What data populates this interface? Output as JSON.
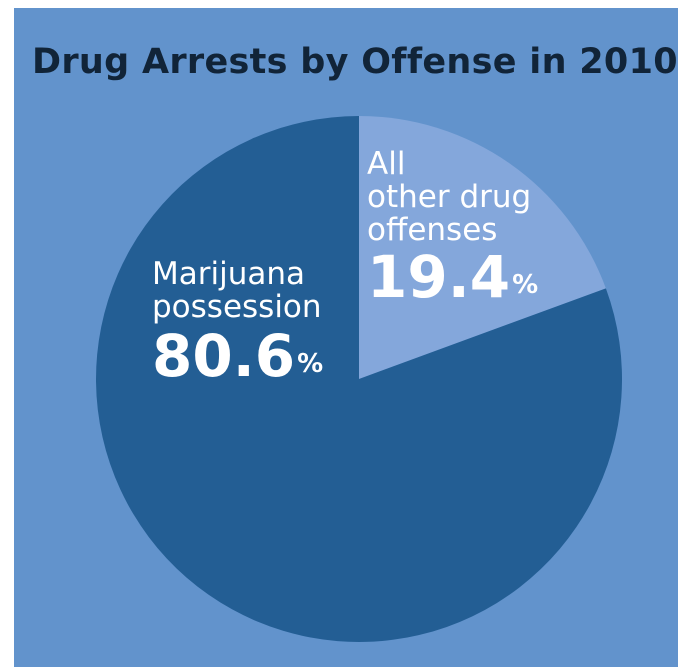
{
  "chart_data": {
    "type": "pie",
    "title": "Drug Arrests by Offense in 2010",
    "slices": [
      {
        "name_lines": [
          "All",
          "other drug",
          "offenses"
        ],
        "value": 19.4,
        "value_text": "19.4",
        "unit": "%",
        "color": "#84a7db"
      },
      {
        "name_lines": [
          "Marijuana",
          "possession"
        ],
        "value": 80.6,
        "value_text": "80.6",
        "unit": "%",
        "color": "#235e94"
      }
    ]
  },
  "colors": {
    "background": "#6293cc",
    "title": "#112438",
    "label_text": "#ffffff"
  }
}
